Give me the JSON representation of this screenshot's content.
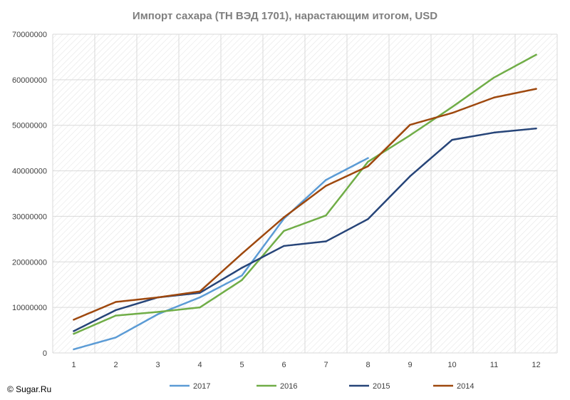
{
  "chart_data": {
    "type": "line",
    "title": "Импорт сахара (ТН ВЭД 1701), нарастающим итогом, USD",
    "xlabel": "",
    "ylabel": "",
    "categories": [
      "1",
      "2",
      "3",
      "4",
      "5",
      "6",
      "7",
      "8",
      "9",
      "10",
      "11",
      "12"
    ],
    "ylim": [
      0,
      70000000
    ],
    "y_ticks": [
      "0",
      "10000000",
      "20000000",
      "30000000",
      "40000000",
      "50000000",
      "60000000",
      "70000000"
    ],
    "grid": "hatched",
    "legend_position": "bottom",
    "series": [
      {
        "name": "2017",
        "color": "#5b9bd5",
        "values": [
          800000,
          3400000,
          8500000,
          12200000,
          17000000,
          29500000,
          38000000,
          42800000,
          null,
          null,
          null,
          null
        ]
      },
      {
        "name": "2016",
        "color": "#70ad47",
        "values": [
          4200000,
          8200000,
          9000000,
          10000000,
          16000000,
          26800000,
          30200000,
          42000000,
          47800000,
          54000000,
          60500000,
          65500000
        ]
      },
      {
        "name": "2015",
        "color": "#264478",
        "values": [
          4800000,
          9400000,
          12200000,
          13200000,
          18700000,
          23500000,
          24500000,
          29400000,
          38800000,
          46800000,
          48400000,
          49300000
        ]
      },
      {
        "name": "2014",
        "color": "#9e480e",
        "values": [
          7300000,
          11200000,
          12200000,
          13500000,
          21800000,
          29800000,
          36700000,
          41000000,
          50100000,
          52700000,
          56100000,
          58000000
        ]
      }
    ]
  },
  "copyright": "© Sugar.Ru"
}
